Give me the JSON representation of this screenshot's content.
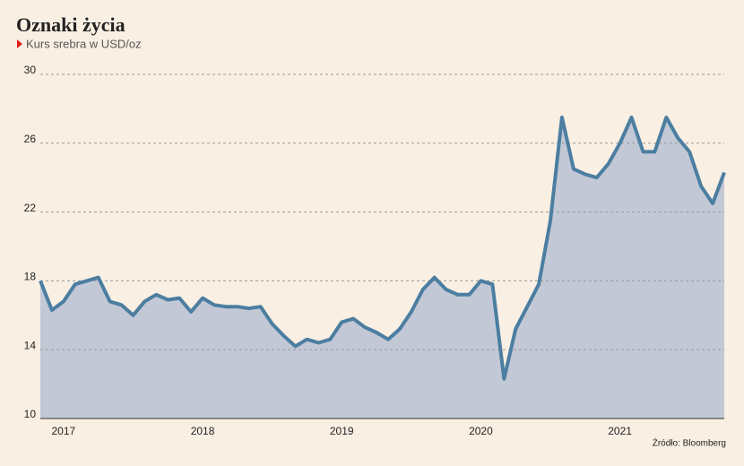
{
  "chart_data": {
    "type": "area",
    "title": "Oznaki życia",
    "subtitle": "Kurs srebra w USD/oz",
    "source": "Źródło: Bloomberg",
    "color": "#4b7ea1",
    "fill": "#c3c8d6",
    "grid": true,
    "categories": [
      null,
      null,
      "2017",
      null,
      null,
      null,
      null,
      null,
      null,
      null,
      null,
      null,
      null,
      null,
      "2018",
      null,
      null,
      null,
      null,
      null,
      null,
      null,
      null,
      null,
      null,
      null,
      "2019",
      null,
      null,
      null,
      null,
      null,
      null,
      null,
      null,
      null,
      null,
      null,
      "2020",
      null,
      null,
      null,
      null,
      null,
      null,
      null,
      null,
      null,
      null,
      null,
      "2021",
      null,
      null,
      null,
      null,
      null,
      null,
      null,
      null,
      null
    ],
    "values": [
      18.0,
      16.3,
      16.8,
      17.8,
      18.0,
      18.2,
      16.8,
      16.6,
      16.0,
      16.8,
      17.2,
      16.9,
      17.0,
      16.2,
      17.0,
      16.6,
      16.5,
      16.5,
      16.4,
      16.5,
      15.5,
      14.8,
      14.2,
      14.6,
      14.4,
      14.6,
      15.6,
      15.8,
      15.3,
      15.0,
      14.6,
      15.2,
      16.2,
      17.5,
      18.2,
      17.5,
      17.2,
      17.2,
      18.0,
      17.8,
      12.3,
      15.2,
      16.5,
      17.8,
      21.5,
      27.5,
      24.5,
      24.2,
      24.0,
      24.8,
      26.0,
      27.5,
      25.5,
      25.5,
      27.5,
      26.3,
      25.5,
      23.5,
      22.5,
      24.3
    ],
    "ylim": [
      10,
      30
    ],
    "yticks": [
      10,
      14,
      18,
      22,
      26,
      30
    ]
  }
}
